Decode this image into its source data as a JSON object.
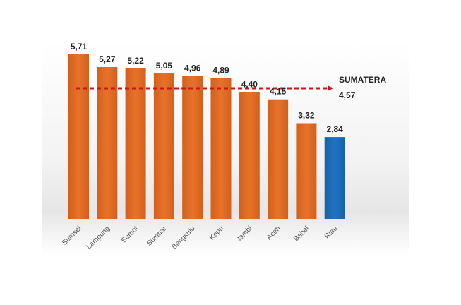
{
  "chart_data": {
    "type": "bar",
    "categories": [
      "Sumsel",
      "Lampung",
      "Sumut",
      "Sumbar",
      "Bengkulu",
      "Kepri",
      "Jambi",
      "Aceh",
      "Babel",
      "Riau"
    ],
    "values": [
      5.71,
      5.27,
      5.22,
      5.05,
      4.96,
      4.89,
      4.4,
      4.15,
      3.32,
      2.84
    ],
    "value_labels": [
      "5,71",
      "5,27",
      "5,22",
      "5,05",
      "4,96",
      "4,89",
      "4,40",
      "4,15",
      "3,32",
      "2,84"
    ],
    "highlight_category": "Riau",
    "ylim": [
      0,
      5.71
    ],
    "grid": false,
    "reference_line": {
      "label": "SUMATERA",
      "value": 4.57,
      "value_label": "4,57",
      "style": "dashed-arrow"
    },
    "colors": {
      "bar": "#E8722A",
      "bar_dark": "#D2601C",
      "highlight": "#1F73C2",
      "highlight_dark": "#1762A8",
      "reference": "#C8161D"
    }
  }
}
